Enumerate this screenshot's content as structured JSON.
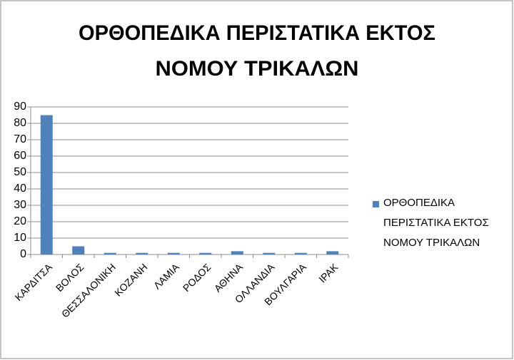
{
  "chart_data": {
    "type": "bar",
    "title": [
      "ΟΡΘΟΠΕΔΙΚΑ ΠΕΡΙΣΤΑΤΙΚΑ ΕΚΤΟΣ",
      "ΝΟΜΟΥ ΤΡΙΚΑΛΩΝ"
    ],
    "categories": [
      "ΚΑΡΔΙΤΣΑ",
      "ΒΟΛΟΣ",
      "ΘΕΣΣΑΛΟΝΙΚΗ",
      "ΚΟΖΑΝΗ",
      "ΛΑΜΙΑ",
      "ΡΟΔΟΣ",
      "ΑΘΗΝΑ",
      "ΟΛΛΑΝΔΙΑ",
      "ΒΟΥΛΓΑΡΙΑ",
      "ΙΡΑΚ"
    ],
    "series": [
      {
        "name": "ΟΡΘΟΠΕΔΙΚΑ ΠΕΡΙΣΤΑΤΙΚΑ ΕΚΤΟΣ ΝΟΜΟΥ ΤΡΙΚΑΛΩΝ",
        "color": "#4f81bd",
        "values": [
          85,
          5,
          1,
          1,
          1,
          1,
          2,
          1,
          1,
          2
        ]
      }
    ],
    "ylim": [
      0,
      90
    ],
    "yticks": [
      0,
      10,
      20,
      30,
      40,
      50,
      60,
      70,
      80,
      90
    ],
    "grid": true,
    "legend": "right"
  }
}
